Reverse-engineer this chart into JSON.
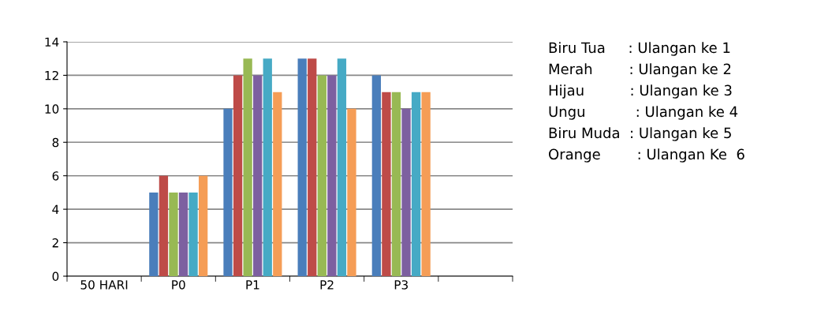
{
  "chart_data": {
    "type": "bar",
    "categories": [
      "50 HARI",
      "P0",
      "P1",
      "P2",
      "P3",
      null
    ],
    "series": [
      {
        "color": "#4a7ebb",
        "values": [
          null,
          5,
          10,
          13,
          12,
          null
        ]
      },
      {
        "color": "#be4b48",
        "values": [
          null,
          6,
          12,
          13,
          11,
          null
        ]
      },
      {
        "color": "#98b954",
        "values": [
          null,
          5,
          13,
          12,
          11,
          null
        ]
      },
      {
        "color": "#7d60a0",
        "values": [
          null,
          5,
          12,
          12,
          10,
          null
        ]
      },
      {
        "color": "#46aac5",
        "values": [
          null,
          5,
          13,
          13,
          11,
          null
        ]
      },
      {
        "color": "#f59d56",
        "values": [
          null,
          6,
          11,
          10,
          11,
          null
        ]
      }
    ],
    "ylim": [
      0,
      14
    ],
    "yticks": [
      0,
      2,
      4,
      6,
      8,
      10,
      12,
      14
    ],
    "grid": "y",
    "legend": false,
    "annotations": [
      "Biru Tua     : Ulangan ke 1",
      "Merah        : Ulangan ke 2",
      "Hijau          : Ulangan ke 3",
      "Ungu           : Ulangan ke 4",
      "Biru Muda  : Ulangan ke 5",
      "Orange        : Ulangan Ke  6"
    ]
  }
}
